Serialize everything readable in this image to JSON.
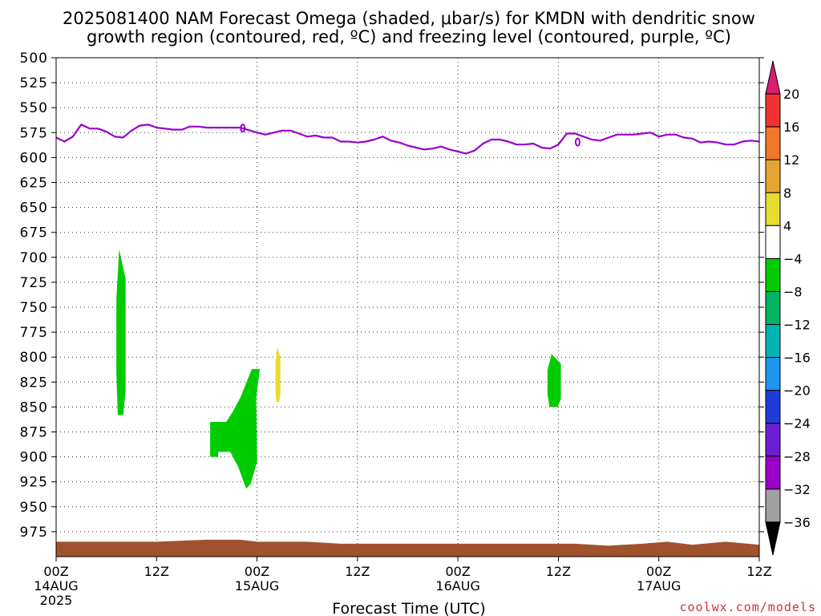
{
  "title_line1": "2025081400 NAM Forecast Omega (shaded, μbar/s) for KMDN with dendritic snow",
  "title_line2": "growth region (contoured, red, ºC) and freezing level (contoured, purple, ºC)",
  "xlabel": "Forecast Time (UTC)",
  "credit": "coolwx.com/models",
  "colors": {
    "freezing_level": "#9900cc",
    "ground": "#a0522d",
    "omega_green": "#00cc00",
    "omega_yellow": "#e6dc32",
    "credit": "#d23232"
  },
  "chart_data": {
    "type": "heatmap",
    "title": "2025081400 NAM Forecast Omega (shaded, μbar/s) for KMDN with dendritic snow growth region (contoured, red, ºC) and freezing level (contoured, purple, ºC)",
    "xlabel": "Forecast Time (UTC)",
    "ylabel": "",
    "xlim": [
      0,
      84
    ],
    "ylim": [
      500,
      1000
    ],
    "y_axis": "pressure (hPa), reversed",
    "grid": true,
    "x_ticks": [
      {
        "hour": 0,
        "label": "00Z",
        "sub": "14AUG",
        "year": "2025"
      },
      {
        "hour": 12,
        "label": "12Z",
        "sub": "",
        "year": ""
      },
      {
        "hour": 24,
        "label": "00Z",
        "sub": "15AUG",
        "year": ""
      },
      {
        "hour": 36,
        "label": "12Z",
        "sub": "",
        "year": ""
      },
      {
        "hour": 48,
        "label": "00Z",
        "sub": "16AUG",
        "year": ""
      },
      {
        "hour": 60,
        "label": "12Z",
        "sub": "",
        "year": ""
      },
      {
        "hour": 72,
        "label": "00Z",
        "sub": "17AUG",
        "year": ""
      },
      {
        "hour": 84,
        "label": "12Z",
        "sub": "",
        "year": ""
      }
    ],
    "y_ticks": [
      "500",
      "525",
      "550",
      "575",
      "600",
      "625",
      "650",
      "675",
      "700",
      "725",
      "750",
      "775",
      "800",
      "825",
      "850",
      "875",
      "900",
      "925",
      "950",
      "975"
    ],
    "colorbar": {
      "labels": [
        "20",
        "16",
        "12",
        "8",
        "4",
        "−4",
        "−8",
        "−12",
        "−16",
        "−20",
        "−24",
        "−28",
        "−32",
        "−36"
      ],
      "colors": [
        "#d81e6e",
        "#f03232",
        "#f07828",
        "#e6a532",
        "#e6dc32",
        "#ffffff",
        "#00cc00",
        "#00b464",
        "#00b4b4",
        "#1e96f0",
        "#1e3cdc",
        "#6e1ed2",
        "#9b00c8",
        "#a0a0a0",
        "#000000"
      ]
    },
    "freezing_level": {
      "name": "freezing level",
      "x": [
        0,
        1,
        2,
        3,
        4,
        5,
        6,
        7,
        8,
        9,
        10,
        11,
        12,
        13,
        14,
        15,
        16,
        17,
        18,
        20,
        22,
        24,
        25,
        26,
        27,
        28,
        29,
        30,
        31,
        32,
        33,
        34,
        35,
        36,
        37,
        38,
        39,
        40,
        41,
        42,
        43,
        44,
        45,
        46,
        47,
        48,
        49,
        50,
        51,
        52,
        53,
        54,
        55,
        56,
        57,
        58,
        59,
        60,
        61,
        62,
        63,
        64,
        65,
        66,
        67,
        68,
        69,
        70,
        71,
        72,
        73,
        74,
        75,
        76,
        77,
        78,
        79,
        80,
        81,
        82,
        83,
        84
      ],
      "y": [
        580,
        584,
        579,
        567,
        571,
        571,
        574,
        579,
        580,
        573,
        568,
        567,
        570,
        571,
        572,
        572,
        569,
        569,
        570,
        570,
        570,
        575,
        577,
        575,
        573,
        573,
        576,
        579,
        578,
        580,
        580,
        584,
        584,
        585,
        584,
        582,
        579,
        583,
        585,
        588,
        590,
        592,
        591,
        589,
        592,
        594,
        596,
        593,
        586,
        582,
        582,
        584,
        587,
        587,
        586,
        590,
        591,
        587,
        576,
        576,
        579,
        582,
        583,
        580,
        577,
        577,
        577,
        576,
        575,
        579,
        577,
        577,
        580,
        581,
        585,
        584,
        585,
        587,
        587,
        584,
        583,
        584
      ]
    },
    "omega_regions": [
      {
        "value_range": "-8 to -4",
        "color": "green",
        "x": [
          7.2,
          8.3
        ],
        "y": [
          692,
          858
        ]
      },
      {
        "value_range": "-8 to -4",
        "color": "green",
        "x": [
          18.4,
          24.0
        ],
        "y": [
          812,
          932
        ]
      },
      {
        "value_range": "4 to 8",
        "color": "yellow",
        "x": [
          26.2,
          26.8
        ],
        "y": [
          790,
          845
        ]
      },
      {
        "value_range": "-8 to -4",
        "color": "green",
        "x": [
          58.7,
          60.3
        ],
        "y": [
          797,
          850
        ]
      }
    ],
    "ground": {
      "name": "surface",
      "x": [
        0,
        12,
        18,
        22,
        24,
        30,
        34,
        42,
        54,
        62,
        66,
        70,
        73,
        76,
        80,
        84
      ],
      "y": [
        985,
        985,
        983,
        983,
        985,
        985,
        987,
        987,
        987,
        987,
        989,
        987,
        985,
        988,
        985,
        988
      ]
    }
  }
}
